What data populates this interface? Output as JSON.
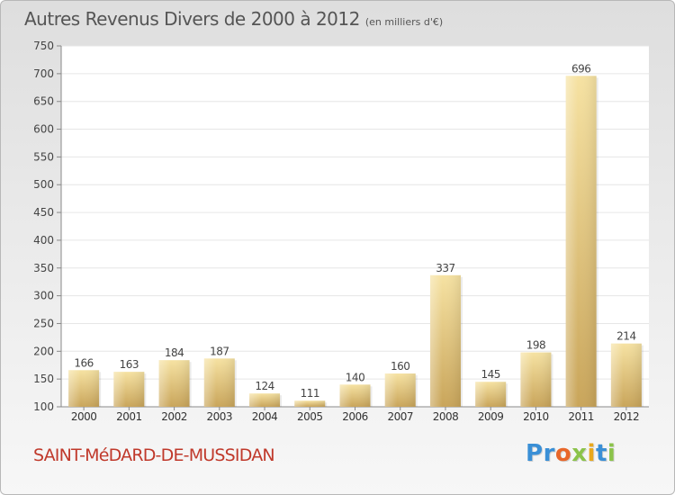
{
  "title": "Autres Revenus Divers de 2000 à 2012",
  "unit_note": "(en milliers d'€)",
  "commune": "SAINT-MéDARD-DE-MUSSIDAN",
  "brand": {
    "text": "Proxiti",
    "letter_colors": [
      "#3a8fd6",
      "#3a8fd6",
      "#e8672a",
      "#8bc34a",
      "#e8a81c",
      "#3a8fd6",
      "#8bc34a"
    ]
  },
  "colors": {
    "bar_light": "#f6e2a2",
    "bar_dark": "#c9a55a",
    "commune_text": "#c0392b"
  },
  "chart_data": {
    "type": "bar",
    "title": "Autres Revenus Divers de 2000 à 2012",
    "xlabel": "",
    "ylabel": "",
    "categories": [
      "2000",
      "2001",
      "2002",
      "2003",
      "2004",
      "2005",
      "2006",
      "2007",
      "2008",
      "2009",
      "2010",
      "2011",
      "2012"
    ],
    "values": [
      166,
      163,
      184,
      187,
      124,
      111,
      140,
      160,
      337,
      145,
      198,
      696,
      214
    ],
    "ylim": [
      100,
      750
    ],
    "yticks": [
      100,
      150,
      200,
      250,
      300,
      350,
      400,
      450,
      500,
      550,
      600,
      650,
      700,
      750
    ],
    "grid": true,
    "legend": "none"
  }
}
